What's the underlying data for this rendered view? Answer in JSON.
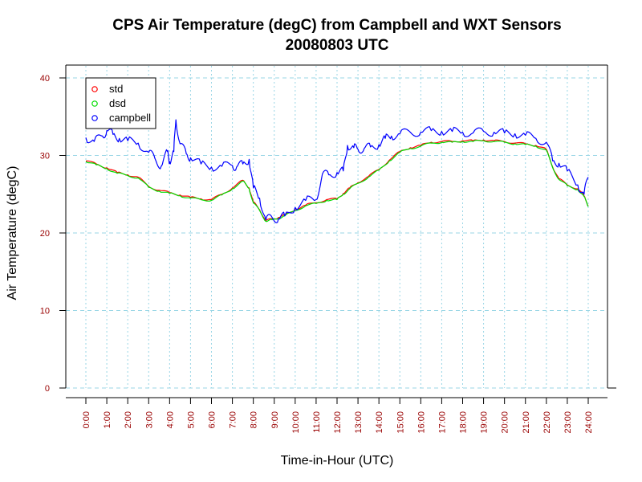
{
  "chart_data": {
    "type": "line",
    "title": "CPS Air Temperature (degC) from Campbell and WXT Sensors",
    "subtitle": "20080803  UTC",
    "xlabel": "Time-in-Hour (UTC)",
    "ylabel": "Air Temperature (degC)",
    "xlim": [
      0,
      24
    ],
    "ylim": [
      0,
      40
    ],
    "yticks": [
      0,
      10,
      20,
      30,
      40
    ],
    "x_tick_labels": [
      "0:00",
      "1:00",
      "2:00",
      "3:00",
      "4:00",
      "5:00",
      "6:00",
      "7:00",
      "8:00",
      "9:00",
      "10:00",
      "11:00",
      "12:00",
      "13:00",
      "14:00",
      "15:00",
      "16:00",
      "17:00",
      "18:00",
      "19:00",
      "20:00",
      "21:00",
      "22:00",
      "23:00",
      "24:00"
    ],
    "tick_label_color": "#990000",
    "grid": true,
    "legend_position": "top-left",
    "series": [
      {
        "name": "std",
        "color": "#ff0000",
        "x": [
          0,
          0.5,
          1,
          1.5,
          2,
          2.5,
          3,
          3.5,
          4,
          4.5,
          5,
          5.5,
          6,
          6.5,
          7,
          7.5,
          7.8,
          8,
          8.3,
          8.6,
          8.9,
          9.2,
          9.5,
          10,
          10.5,
          11,
          11.5,
          12,
          12.3,
          12.6,
          13,
          13.5,
          14,
          14.5,
          15,
          15.5,
          16,
          16.5,
          17,
          17.5,
          18,
          18.5,
          19,
          19.5,
          20,
          20.5,
          21,
          21.5,
          22,
          22.3,
          22.6,
          23,
          23.5,
          23.8,
          24
        ],
        "values": [
          29.3,
          28.9,
          28.4,
          27.8,
          27.5,
          27.2,
          26.0,
          25.5,
          25.2,
          24.9,
          24.6,
          24.4,
          24.3,
          25.0,
          25.8,
          26.8,
          25.8,
          24.0,
          23.0,
          21.6,
          21.8,
          22.0,
          22.3,
          23.0,
          23.6,
          23.9,
          24.3,
          24.4,
          25.1,
          25.8,
          26.5,
          27.3,
          28.2,
          29.4,
          30.5,
          31.0,
          31.3,
          31.7,
          31.8,
          31.8,
          31.9,
          31.9,
          32.0,
          31.9,
          31.8,
          31.6,
          31.5,
          31.3,
          30.8,
          28.5,
          27.0,
          26.2,
          25.7,
          24.8,
          23.5
        ]
      },
      {
        "name": "dsd",
        "color": "#00dd00",
        "x": [
          0,
          0.5,
          1,
          1.5,
          2,
          2.5,
          3,
          3.5,
          4,
          4.5,
          5,
          5.5,
          6,
          6.5,
          7,
          7.5,
          7.8,
          8,
          8.3,
          8.6,
          8.9,
          9.2,
          9.5,
          10,
          10.5,
          11,
          11.5,
          12,
          12.3,
          12.6,
          13,
          13.5,
          14,
          14.5,
          15,
          15.5,
          16,
          16.5,
          17,
          17.5,
          18,
          18.5,
          19,
          19.5,
          20,
          20.5,
          21,
          21.5,
          22,
          22.3,
          22.6,
          23,
          23.5,
          23.8,
          24
        ],
        "values": [
          29.2,
          28.8,
          28.3,
          27.7,
          27.4,
          27.1,
          25.9,
          25.4,
          25.1,
          24.8,
          24.5,
          24.3,
          24.2,
          24.9,
          25.7,
          26.7,
          25.7,
          23.9,
          22.9,
          21.5,
          21.7,
          21.9,
          22.2,
          22.9,
          23.5,
          23.8,
          24.2,
          24.3,
          25.0,
          25.7,
          26.4,
          27.2,
          28.1,
          29.3,
          30.4,
          30.9,
          31.2,
          31.6,
          31.7,
          31.7,
          31.8,
          31.8,
          31.9,
          31.8,
          31.7,
          31.5,
          31.4,
          31.2,
          30.7,
          28.4,
          26.9,
          26.1,
          25.6,
          24.7,
          23.4
        ]
      },
      {
        "name": "campbell",
        "color": "#0000ff",
        "x": [
          0,
          0.4,
          0.8,
          1,
          1.3,
          1.6,
          2,
          2.5,
          3,
          3.3,
          3.6,
          3.9,
          4,
          4.2,
          4.3,
          4.5,
          4.8,
          5,
          5.5,
          6,
          6.5,
          7,
          7.2,
          7.5,
          7.8,
          8,
          8.3,
          8.6,
          8.9,
          9.2,
          9.5,
          10,
          10.5,
          11,
          11.3,
          11.6,
          12,
          12.3,
          12.5,
          12.8,
          13,
          13.3,
          13.6,
          14,
          14.3,
          14.6,
          15,
          15.5,
          16,
          16.5,
          17,
          17.5,
          18,
          18.5,
          19,
          19.5,
          20,
          20.5,
          21,
          21.5,
          22,
          22.3,
          22.6,
          23,
          23.5,
          23.8,
          24
        ],
        "values": [
          32.3,
          31.8,
          32.5,
          33.2,
          32.7,
          32.2,
          31.9,
          31.6,
          30.4,
          29.6,
          28.6,
          30.5,
          29.2,
          30.5,
          34.6,
          31.5,
          30.2,
          29.7,
          28.9,
          28.5,
          28.6,
          28.7,
          28.5,
          28.9,
          29.5,
          25.8,
          24.5,
          21.7,
          22.0,
          21.8,
          22.2,
          23.3,
          24.2,
          24.3,
          27.6,
          27.5,
          27.8,
          28.0,
          31.3,
          31.0,
          30.8,
          30.9,
          31.1,
          31.4,
          32.2,
          32.5,
          32.8,
          33.0,
          33.0,
          33.2,
          33.1,
          33.1,
          33.0,
          32.9,
          33.1,
          33.0,
          32.9,
          32.8,
          32.6,
          32.2,
          31.7,
          29.3,
          29.0,
          28.0,
          26.2,
          25.0,
          27.2
        ]
      }
    ]
  }
}
